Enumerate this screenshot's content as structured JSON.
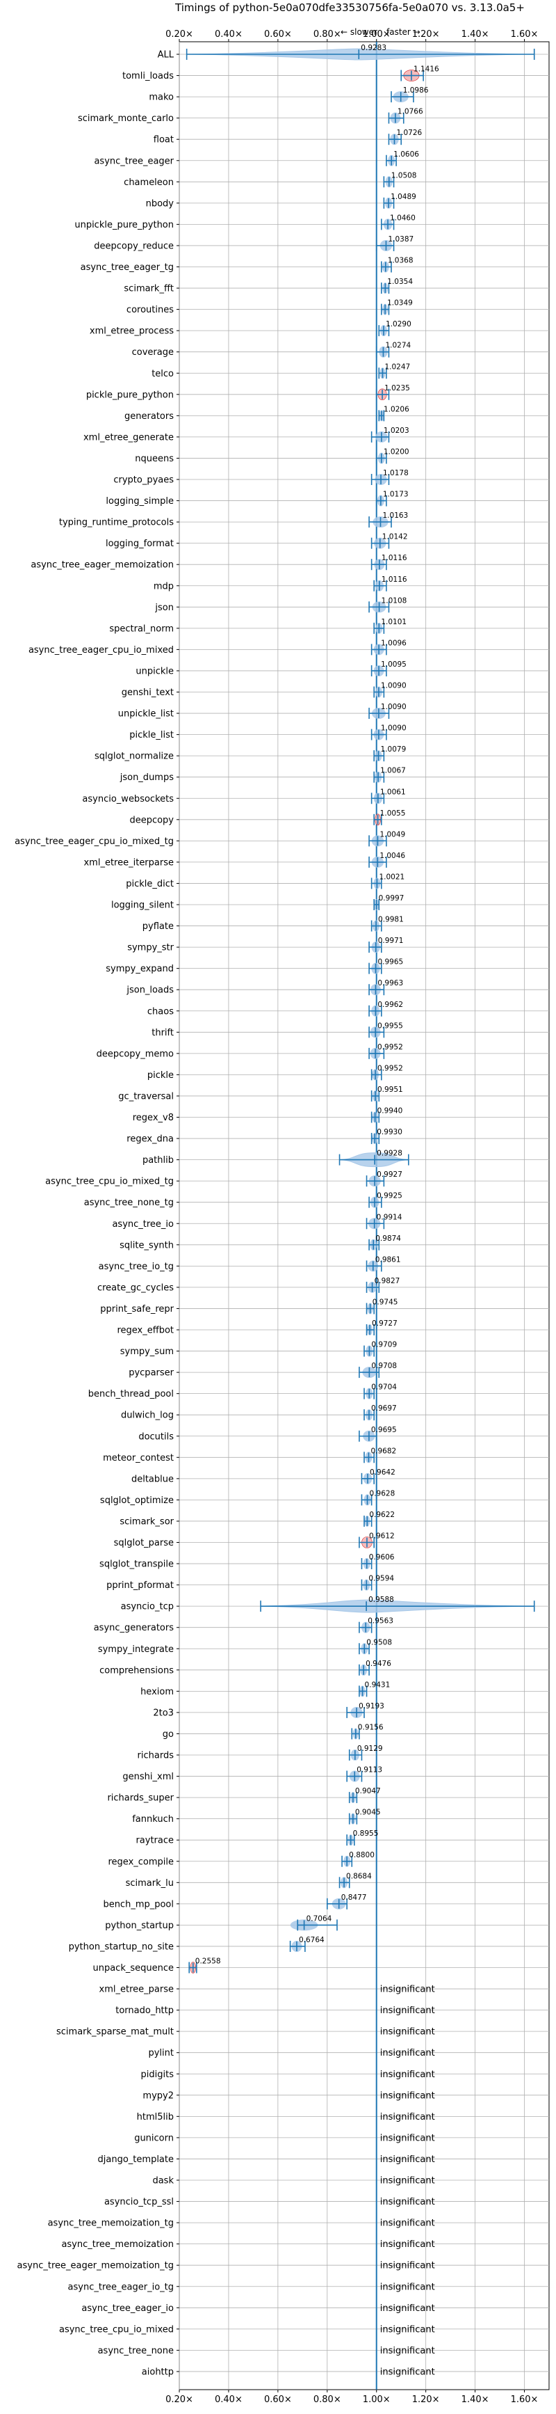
{
  "chart_data": {
    "type": "scatter",
    "title": "Timings of python-5e0a070dfe33530756fa-5e0a070 vs. 3.13.0a5+",
    "subtitle_slower": "← slower",
    "subtitle_faster": "faster →",
    "xlim": [
      0.2,
      1.7
    ],
    "x_ticks": [
      0.2,
      0.4,
      0.6,
      0.8,
      1.0,
      1.2,
      1.4,
      1.6
    ],
    "x_tick_labels": [
      "0.20×",
      "0.40×",
      "0.60×",
      "0.80×",
      "1.00×",
      "1.20×",
      "1.40×",
      "1.60×"
    ],
    "grid": true,
    "reference_x": 1.0,
    "insignificant_label": "insignificant",
    "benchmarks": [
      {
        "name": "ALL",
        "label": "0.9283",
        "value": 0.9283,
        "wmin": 0.23,
        "wmax": 1.64,
        "kind": "violin",
        "outlier_color": "#1f77b4"
      },
      {
        "name": "tomli_loads",
        "label": "1.1416",
        "value": 1.1416,
        "wmin": 1.1,
        "wmax": 1.19,
        "kind": "red"
      },
      {
        "name": "mako",
        "label": "1.0986",
        "value": 1.0986,
        "wmin": 1.06,
        "wmax": 1.15,
        "kind": "normal"
      },
      {
        "name": "scimark_monte_carlo",
        "label": "1.0766",
        "value": 1.0766,
        "wmin": 1.05,
        "wmax": 1.11,
        "kind": "normal"
      },
      {
        "name": "float",
        "label": "1.0726",
        "value": 1.0726,
        "wmin": 1.05,
        "wmax": 1.1,
        "kind": "normal"
      },
      {
        "name": "async_tree_eager",
        "label": "1.0606",
        "value": 1.0606,
        "wmin": 1.04,
        "wmax": 1.08,
        "kind": "normal"
      },
      {
        "name": "chameleon",
        "label": "1.0508",
        "value": 1.0508,
        "wmin": 1.03,
        "wmax": 1.07,
        "kind": "normal"
      },
      {
        "name": "nbody",
        "label": "1.0489",
        "value": 1.0489,
        "wmin": 1.03,
        "wmax": 1.07,
        "kind": "normal"
      },
      {
        "name": "unpickle_pure_python",
        "label": "1.0460",
        "value": 1.046,
        "wmin": 1.02,
        "wmax": 1.07,
        "kind": "normal"
      },
      {
        "name": "deepcopy_reduce",
        "label": "1.0387",
        "value": 1.0387,
        "wmin": 1.0,
        "wmax": 1.07,
        "kind": "normal"
      },
      {
        "name": "async_tree_eager_tg",
        "label": "1.0368",
        "value": 1.0368,
        "wmin": 1.02,
        "wmax": 1.06,
        "kind": "normal"
      },
      {
        "name": "scimark_fft",
        "label": "1.0354",
        "value": 1.0354,
        "wmin": 1.02,
        "wmax": 1.05,
        "kind": "normal"
      },
      {
        "name": "coroutines",
        "label": "1.0349",
        "value": 1.0349,
        "wmin": 1.02,
        "wmax": 1.05,
        "kind": "normal"
      },
      {
        "name": "xml_etree_process",
        "label": "1.0290",
        "value": 1.029,
        "wmin": 1.01,
        "wmax": 1.05,
        "kind": "normal"
      },
      {
        "name": "coverage",
        "label": "1.0274",
        "value": 1.0274,
        "wmin": 1.0,
        "wmax": 1.05,
        "kind": "normal"
      },
      {
        "name": "telco",
        "label": "1.0247",
        "value": 1.0247,
        "wmin": 1.01,
        "wmax": 1.04,
        "kind": "normal"
      },
      {
        "name": "pickle_pure_python",
        "label": "1.0235",
        "value": 1.0235,
        "wmin": 1.0,
        "wmax": 1.05,
        "kind": "red"
      },
      {
        "name": "generators",
        "label": "1.0206",
        "value": 1.0206,
        "wmin": 1.01,
        "wmax": 1.03,
        "kind": "normal"
      },
      {
        "name": "xml_etree_generate",
        "label": "1.0203",
        "value": 1.0203,
        "wmin": 0.98,
        "wmax": 1.05,
        "kind": "normal"
      },
      {
        "name": "nqueens",
        "label": "1.0200",
        "value": 1.02,
        "wmin": 1.0,
        "wmax": 1.04,
        "kind": "normal"
      },
      {
        "name": "crypto_pyaes",
        "label": "1.0178",
        "value": 1.0178,
        "wmin": 0.98,
        "wmax": 1.05,
        "kind": "normal"
      },
      {
        "name": "logging_simple",
        "label": "1.0173",
        "value": 1.0173,
        "wmin": 1.0,
        "wmax": 1.04,
        "kind": "normal"
      },
      {
        "name": "typing_runtime_protocols",
        "label": "1.0163",
        "value": 1.0163,
        "wmin": 0.97,
        "wmax": 1.06,
        "kind": "normal"
      },
      {
        "name": "logging_format",
        "label": "1.0142",
        "value": 1.0142,
        "wmin": 0.98,
        "wmax": 1.05,
        "kind": "normal"
      },
      {
        "name": "async_tree_eager_memoization",
        "label": "1.0116",
        "value": 1.0116,
        "wmin": 0.98,
        "wmax": 1.04,
        "kind": "normal"
      },
      {
        "name": "mdp",
        "label": "1.0116",
        "value": 1.0116,
        "wmin": 0.99,
        "wmax": 1.04,
        "kind": "normal"
      },
      {
        "name": "json",
        "label": "1.0108",
        "value": 1.0108,
        "wmin": 0.97,
        "wmax": 1.05,
        "kind": "normal"
      },
      {
        "name": "spectral_norm",
        "label": "1.0101",
        "value": 1.0101,
        "wmin": 0.99,
        "wmax": 1.03,
        "kind": "normal"
      },
      {
        "name": "async_tree_eager_cpu_io_mixed",
        "label": "1.0096",
        "value": 1.0096,
        "wmin": 0.98,
        "wmax": 1.04,
        "kind": "normal"
      },
      {
        "name": "unpickle",
        "label": "1.0095",
        "value": 1.0095,
        "wmin": 0.98,
        "wmax": 1.04,
        "kind": "normal"
      },
      {
        "name": "genshi_text",
        "label": "1.0090",
        "value": 1.009,
        "wmin": 0.99,
        "wmax": 1.03,
        "kind": "normal"
      },
      {
        "name": "unpickle_list",
        "label": "1.0090",
        "value": 1.009,
        "wmin": 0.97,
        "wmax": 1.05,
        "kind": "normal"
      },
      {
        "name": "pickle_list",
        "label": "1.0090",
        "value": 1.009,
        "wmin": 0.98,
        "wmax": 1.04,
        "kind": "normal"
      },
      {
        "name": "sqlglot_normalize",
        "label": "1.0079",
        "value": 1.0079,
        "wmin": 0.99,
        "wmax": 1.03,
        "kind": "normal"
      },
      {
        "name": "json_dumps",
        "label": "1.0067",
        "value": 1.0067,
        "wmin": 0.99,
        "wmax": 1.03,
        "kind": "normal"
      },
      {
        "name": "asyncio_websockets",
        "label": "1.0061",
        "value": 1.0061,
        "wmin": 0.98,
        "wmax": 1.03,
        "kind": "normal"
      },
      {
        "name": "deepcopy",
        "label": "1.0055",
        "value": 1.0055,
        "wmin": 0.99,
        "wmax": 1.02,
        "kind": "red"
      },
      {
        "name": "async_tree_eager_cpu_io_mixed_tg",
        "label": "1.0049",
        "value": 1.0049,
        "wmin": 0.97,
        "wmax": 1.04,
        "kind": "normal"
      },
      {
        "name": "xml_etree_iterparse",
        "label": "1.0046",
        "value": 1.0046,
        "wmin": 0.97,
        "wmax": 1.04,
        "kind": "normal"
      },
      {
        "name": "pickle_dict",
        "label": "1.0021",
        "value": 1.0021,
        "wmin": 0.98,
        "wmax": 1.02,
        "kind": "normal"
      },
      {
        "name": "logging_silent",
        "label": "0.9997",
        "value": 0.9997,
        "wmin": 0.99,
        "wmax": 1.01,
        "kind": "normal"
      },
      {
        "name": "pyflate",
        "label": "0.9981",
        "value": 0.9981,
        "wmin": 0.98,
        "wmax": 1.02,
        "kind": "normal"
      },
      {
        "name": "sympy_str",
        "label": "0.9971",
        "value": 0.9971,
        "wmin": 0.97,
        "wmax": 1.02,
        "kind": "normal"
      },
      {
        "name": "sympy_expand",
        "label": "0.9965",
        "value": 0.9965,
        "wmin": 0.97,
        "wmax": 1.02,
        "kind": "normal"
      },
      {
        "name": "json_loads",
        "label": "0.9963",
        "value": 0.9963,
        "wmin": 0.97,
        "wmax": 1.03,
        "kind": "normal"
      },
      {
        "name": "chaos",
        "label": "0.9962",
        "value": 0.9962,
        "wmin": 0.97,
        "wmax": 1.02,
        "kind": "normal"
      },
      {
        "name": "thrift",
        "label": "0.9955",
        "value": 0.9955,
        "wmin": 0.97,
        "wmax": 1.03,
        "kind": "normal"
      },
      {
        "name": "deepcopy_memo",
        "label": "0.9952",
        "value": 0.9952,
        "wmin": 0.97,
        "wmax": 1.03,
        "kind": "normal"
      },
      {
        "name": "pickle",
        "label": "0.9952",
        "value": 0.9952,
        "wmin": 0.98,
        "wmax": 1.02,
        "kind": "normal"
      },
      {
        "name": "gc_traversal",
        "label": "0.9951",
        "value": 0.9951,
        "wmin": 0.98,
        "wmax": 1.01,
        "kind": "normal"
      },
      {
        "name": "regex_v8",
        "label": "0.9940",
        "value": 0.994,
        "wmin": 0.98,
        "wmax": 1.01,
        "kind": "normal"
      },
      {
        "name": "regex_dna",
        "label": "0.9930",
        "value": 0.993,
        "wmin": 0.98,
        "wmax": 1.01,
        "kind": "normal"
      },
      {
        "name": "pathlib",
        "label": "0.9928",
        "value": 0.9928,
        "wmin": 0.85,
        "wmax": 1.13,
        "kind": "violin"
      },
      {
        "name": "async_tree_cpu_io_mixed_tg",
        "label": "0.9927",
        "value": 0.9927,
        "wmin": 0.96,
        "wmax": 1.03,
        "kind": "normal"
      },
      {
        "name": "async_tree_none_tg",
        "label": "0.9925",
        "value": 0.9925,
        "wmin": 0.97,
        "wmax": 1.02,
        "kind": "normal"
      },
      {
        "name": "async_tree_io",
        "label": "0.9914",
        "value": 0.9914,
        "wmin": 0.96,
        "wmax": 1.03,
        "kind": "normal"
      },
      {
        "name": "sqlite_synth",
        "label": "0.9874",
        "value": 0.9874,
        "wmin": 0.97,
        "wmax": 1.01,
        "kind": "normal"
      },
      {
        "name": "async_tree_io_tg",
        "label": "0.9861",
        "value": 0.9861,
        "wmin": 0.96,
        "wmax": 1.02,
        "kind": "normal"
      },
      {
        "name": "create_gc_cycles",
        "label": "0.9827",
        "value": 0.9827,
        "wmin": 0.96,
        "wmax": 1.01,
        "kind": "normal"
      },
      {
        "name": "pprint_safe_repr",
        "label": "0.9745",
        "value": 0.9745,
        "wmin": 0.96,
        "wmax": 0.99,
        "kind": "normal"
      },
      {
        "name": "regex_effbot",
        "label": "0.9727",
        "value": 0.9727,
        "wmin": 0.96,
        "wmax": 0.99,
        "kind": "normal"
      },
      {
        "name": "sympy_sum",
        "label": "0.9709",
        "value": 0.9709,
        "wmin": 0.95,
        "wmax": 0.99,
        "kind": "normal"
      },
      {
        "name": "pycparser",
        "label": "0.9708",
        "value": 0.9708,
        "wmin": 0.93,
        "wmax": 1.01,
        "kind": "normal"
      },
      {
        "name": "bench_thread_pool",
        "label": "0.9704",
        "value": 0.9704,
        "wmin": 0.95,
        "wmax": 0.99,
        "kind": "normal"
      },
      {
        "name": "dulwich_log",
        "label": "0.9697",
        "value": 0.9697,
        "wmin": 0.95,
        "wmax": 0.99,
        "kind": "normal"
      },
      {
        "name": "docutils",
        "label": "0.9695",
        "value": 0.9695,
        "wmin": 0.93,
        "wmax": 1.0,
        "kind": "normal"
      },
      {
        "name": "meteor_contest",
        "label": "0.9682",
        "value": 0.9682,
        "wmin": 0.95,
        "wmax": 0.99,
        "kind": "normal"
      },
      {
        "name": "deltablue",
        "label": "0.9642",
        "value": 0.9642,
        "wmin": 0.94,
        "wmax": 0.99,
        "kind": "normal"
      },
      {
        "name": "sqlglot_optimize",
        "label": "0.9628",
        "value": 0.9628,
        "wmin": 0.94,
        "wmax": 0.98,
        "kind": "normal"
      },
      {
        "name": "scimark_sor",
        "label": "0.9622",
        "value": 0.9622,
        "wmin": 0.95,
        "wmax": 0.98,
        "kind": "normal"
      },
      {
        "name": "sqlglot_parse",
        "label": "0.9612",
        "value": 0.9612,
        "wmin": 0.93,
        "wmax": 0.99,
        "kind": "red"
      },
      {
        "name": "sqlglot_transpile",
        "label": "0.9606",
        "value": 0.9606,
        "wmin": 0.94,
        "wmax": 0.98,
        "kind": "normal"
      },
      {
        "name": "pprint_pformat",
        "label": "0.9594",
        "value": 0.9594,
        "wmin": 0.94,
        "wmax": 0.98,
        "kind": "normal"
      },
      {
        "name": "asyncio_tcp",
        "label": "0.9588",
        "value": 0.9588,
        "wmin": 0.53,
        "wmax": 1.64,
        "kind": "violin"
      },
      {
        "name": "async_generators",
        "label": "0.9563",
        "value": 0.9563,
        "wmin": 0.93,
        "wmax": 0.98,
        "kind": "normal"
      },
      {
        "name": "sympy_integrate",
        "label": "0.9508",
        "value": 0.9508,
        "wmin": 0.93,
        "wmax": 0.97,
        "kind": "normal"
      },
      {
        "name": "comprehensions",
        "label": "0.9476",
        "value": 0.9476,
        "wmin": 0.93,
        "wmax": 0.97,
        "kind": "normal"
      },
      {
        "name": "hexiom",
        "label": "0.9431",
        "value": 0.9431,
        "wmin": 0.93,
        "wmax": 0.96,
        "kind": "normal"
      },
      {
        "name": "2to3",
        "label": "0.9193",
        "value": 0.9193,
        "wmin": 0.88,
        "wmax": 0.95,
        "kind": "normal"
      },
      {
        "name": "go",
        "label": "0.9156",
        "value": 0.9156,
        "wmin": 0.9,
        "wmax": 0.93,
        "kind": "normal"
      },
      {
        "name": "richards",
        "label": "0.9129",
        "value": 0.9129,
        "wmin": 0.89,
        "wmax": 0.94,
        "kind": "normal"
      },
      {
        "name": "genshi_xml",
        "label": "0.9113",
        "value": 0.9113,
        "wmin": 0.88,
        "wmax": 0.94,
        "kind": "normal"
      },
      {
        "name": "richards_super",
        "label": "0.9047",
        "value": 0.9047,
        "wmin": 0.89,
        "wmax": 0.92,
        "kind": "normal"
      },
      {
        "name": "fannkuch",
        "label": "0.9045",
        "value": 0.9045,
        "wmin": 0.89,
        "wmax": 0.92,
        "kind": "normal"
      },
      {
        "name": "raytrace",
        "label": "0.8955",
        "value": 0.8955,
        "wmin": 0.88,
        "wmax": 0.91,
        "kind": "normal"
      },
      {
        "name": "regex_compile",
        "label": "0.8800",
        "value": 0.88,
        "wmin": 0.86,
        "wmax": 0.9,
        "kind": "normal"
      },
      {
        "name": "scimark_lu",
        "label": "0.8684",
        "value": 0.8684,
        "wmin": 0.85,
        "wmax": 0.89,
        "kind": "normal"
      },
      {
        "name": "bench_mp_pool",
        "label": "0.8477",
        "value": 0.8477,
        "wmin": 0.8,
        "wmax": 0.88,
        "kind": "normal"
      },
      {
        "name": "python_startup",
        "label": "0.7064",
        "value": 0.7064,
        "wmin": 0.68,
        "wmax": 0.84,
        "kind": "normal"
      },
      {
        "name": "python_startup_no_site",
        "label": "0.6764",
        "value": 0.6764,
        "wmin": 0.65,
        "wmax": 0.71,
        "kind": "normal"
      },
      {
        "name": "unpack_sequence",
        "label": "0.2558",
        "value": 0.2558,
        "wmin": 0.24,
        "wmax": 0.27,
        "kind": "red"
      },
      {
        "name": "xml_etree_parse",
        "insignificant": true
      },
      {
        "name": "tornado_http",
        "insignificant": true
      },
      {
        "name": "scimark_sparse_mat_mult",
        "insignificant": true
      },
      {
        "name": "pylint",
        "insignificant": true
      },
      {
        "name": "pidigits",
        "insignificant": true
      },
      {
        "name": "mypy2",
        "insignificant": true
      },
      {
        "name": "html5lib",
        "insignificant": true
      },
      {
        "name": "gunicorn",
        "insignificant": true
      },
      {
        "name": "django_template",
        "insignificant": true
      },
      {
        "name": "dask",
        "insignificant": true
      },
      {
        "name": "asyncio_tcp_ssl",
        "insignificant": true
      },
      {
        "name": "async_tree_memoization_tg",
        "insignificant": true
      },
      {
        "name": "async_tree_memoization",
        "insignificant": true
      },
      {
        "name": "async_tree_eager_memoization_tg",
        "insignificant": true
      },
      {
        "name": "async_tree_eager_io_tg",
        "insignificant": true
      },
      {
        "name": "async_tree_eager_io",
        "insignificant": true
      },
      {
        "name": "async_tree_cpu_io_mixed",
        "insignificant": true
      },
      {
        "name": "async_tree_none",
        "insignificant": true
      },
      {
        "name": "aiohttp",
        "insignificant": true
      }
    ]
  },
  "colors": {
    "primary": "#1f77b4",
    "violin_fill": "#a8c8e8",
    "red_fill": "#f4b0b0",
    "red_stroke": "#d62728",
    "grid": "#b0b0b0"
  }
}
